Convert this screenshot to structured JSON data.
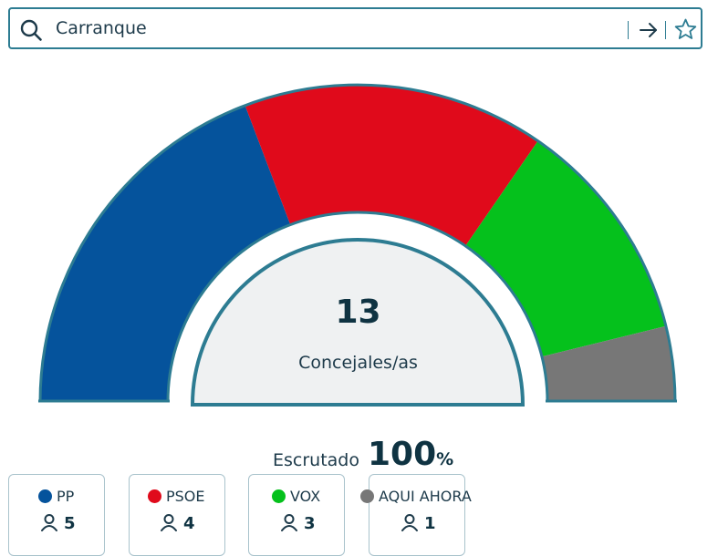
{
  "search": {
    "value": "Carranque"
  },
  "icons": {
    "search": "search-icon",
    "go": "arrow-right-icon",
    "favorite": "star-icon",
    "seats": "person-icon"
  },
  "colors": {
    "accent": "#2d7c92",
    "center_fill": "#eff1f2"
  },
  "summary": {
    "seats_total": "13",
    "seats_label": "Concejales/as",
    "scrutiny_label": "Escrutado",
    "scrutiny_value": "100",
    "scrutiny_unit": "%"
  },
  "chart_data": {
    "type": "hemicycle",
    "total": 13,
    "parties": [
      {
        "name": "PP",
        "seats": 5,
        "color": "#05539c"
      },
      {
        "name": "PSOE",
        "seats": 4,
        "color": "#e00a1b"
      },
      {
        "name": "VOX",
        "seats": 3,
        "color": "#05c11c"
      },
      {
        "name": "AQUI AHORA",
        "seats": 1,
        "color": "#777777"
      }
    ]
  }
}
